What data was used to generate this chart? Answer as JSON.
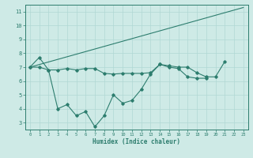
{
  "xlabel": "Humidex (Indice chaleur)",
  "x": [
    0,
    1,
    2,
    3,
    4,
    5,
    6,
    7,
    8,
    9,
    10,
    11,
    12,
    13,
    14,
    15,
    16,
    17,
    18,
    19,
    20,
    21,
    22,
    23
  ],
  "line1": [
    7.0,
    7.7,
    6.8,
    4.0,
    4.3,
    3.5,
    3.8,
    2.7,
    3.5,
    5.0,
    4.4,
    4.6,
    5.4,
    6.5,
    7.2,
    7.0,
    6.9,
    6.3,
    6.2,
    6.2,
    null,
    null,
    null,
    null
  ],
  "line2": [
    7.0,
    7.0,
    6.8,
    6.8,
    6.9,
    6.8,
    6.9,
    6.9,
    6.55,
    6.5,
    6.55,
    6.55,
    6.55,
    6.6,
    7.2,
    7.1,
    7.0,
    7.0,
    6.6,
    6.3,
    6.3,
    7.4,
    null,
    null
  ],
  "line3_x": [
    0,
    23
  ],
  "line3_y": [
    7.0,
    11.3
  ],
  "line_color": "#2d7d6e",
  "bg_color": "#ceeae6",
  "grid_color": "#b0d8d4",
  "ylim": [
    2.5,
    11.5
  ],
  "xlim": [
    -0.5,
    23.5
  ],
  "yticks": [
    3,
    4,
    5,
    6,
    7,
    8,
    9,
    10,
    11
  ],
  "xticks": [
    0,
    1,
    2,
    3,
    4,
    5,
    6,
    7,
    8,
    9,
    10,
    11,
    12,
    13,
    14,
    15,
    16,
    17,
    18,
    19,
    20,
    21,
    22,
    23
  ]
}
